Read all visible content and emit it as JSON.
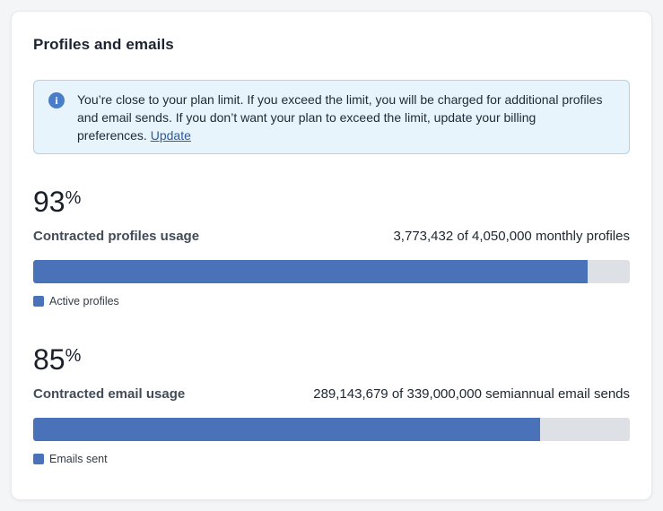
{
  "card": {
    "title": "Profiles and emails"
  },
  "alert": {
    "icon": "info-icon",
    "text": "You’re close to your plan limit. If you exceed the limit, you will be charged for additional profiles and email sends. If you don’t want your plan to exceed the limit, update your billing preferences. ",
    "link_label": "Update"
  },
  "sections": [
    {
      "percent_value": "93",
      "percent_sign": "%",
      "label": "Contracted profiles usage",
      "usage_text": "3,773,432 of 4,050,000 monthly profiles",
      "used": 3773432,
      "total": 4050000,
      "fill_percent": 93,
      "legend_label": "Active profiles"
    },
    {
      "percent_value": "85",
      "percent_sign": "%",
      "label": "Contracted email usage",
      "usage_text": "289,143,679 of 339,000,000 semiannual email sends",
      "used": 289143679,
      "total": 339000000,
      "fill_percent": 85,
      "legend_label": "Emails sent"
    }
  ],
  "colors": {
    "bar_fill": "#4a72b8",
    "bar_track": "#dde0e4",
    "alert_bg": "#e8f4fc",
    "alert_border": "#abd4f0",
    "info_icon": "#4a7dc9",
    "link": "#2d5b9c"
  }
}
